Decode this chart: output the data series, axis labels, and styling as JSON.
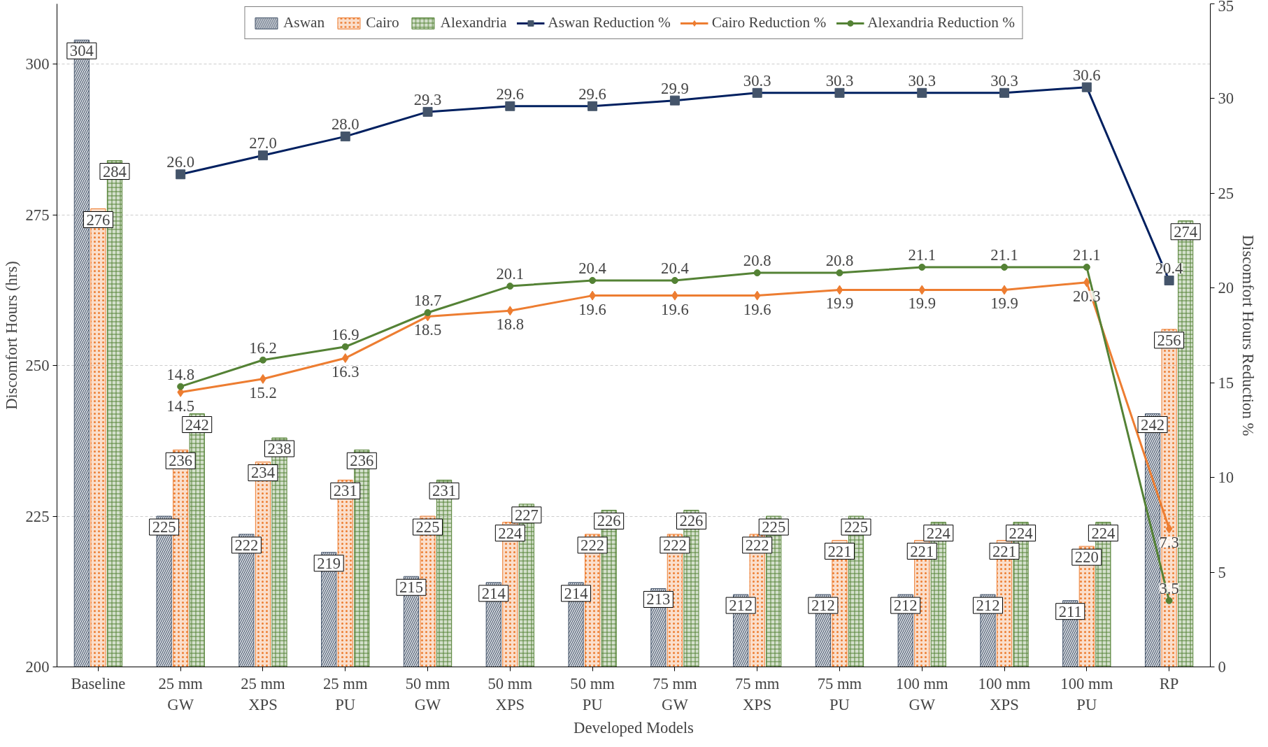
{
  "chart_data": {
    "type": "bar",
    "xlabel": "Developed Models",
    "ylabel": "Discomfort Hours (hrs)",
    "y2label": "Discomfort Hours Reduction %",
    "categories": [
      "Baseline",
      "25 mm\nGW",
      "25 mm\nXPS",
      "25 mm\nPU",
      "50 mm\nGW",
      "50 mm\nXPS",
      "50 mm\nPU",
      "75 mm\nGW",
      "75 mm\nXPS",
      "75 mm\nPU",
      "100 mm\nGW",
      "100 mm\nXPS",
      "100 mm\nPU",
      "RP"
    ],
    "series": [
      {
        "name": "Aswan",
        "color": "#44546a",
        "values": [
          304,
          225,
          222,
          219,
          215,
          214,
          214,
          213,
          212,
          212,
          212,
          212,
          211,
          242
        ]
      },
      {
        "name": "Cairo",
        "color": "#ed7d31",
        "values": [
          276,
          236,
          234,
          231,
          225,
          224,
          222,
          222,
          222,
          221,
          221,
          221,
          220,
          256
        ]
      },
      {
        "name": "Alexandria",
        "color": "#548235",
        "values": [
          284,
          242,
          238,
          236,
          231,
          227,
          226,
          226,
          225,
          225,
          224,
          224,
          224,
          274
        ]
      },
      {
        "name": "Aswan Reduction %",
        "type": "line",
        "axis": "y2",
        "marker": "square",
        "color": "#002060",
        "values": [
          null,
          26.0,
          27.0,
          28.0,
          29.3,
          29.6,
          29.6,
          29.9,
          30.3,
          30.3,
          30.3,
          30.3,
          30.6,
          20.4
        ],
        "value_labels": [
          null,
          "26.0",
          "27.0",
          "28.0",
          "29.3",
          "29.6",
          "29.6",
          "29.9",
          "30.3",
          "30.3",
          "30.3",
          "30.3",
          "30.6",
          "20.4"
        ]
      },
      {
        "name": "Cairo Reduction %",
        "type": "line",
        "axis": "y2",
        "marker": "diamond",
        "color": "#ed7d31",
        "values": [
          null,
          14.5,
          15.2,
          16.3,
          18.5,
          18.8,
          19.6,
          19.6,
          19.6,
          19.9,
          19.9,
          19.9,
          20.3,
          7.3
        ],
        "value_labels": [
          null,
          "14.5",
          "15.2",
          "16.3",
          "18.5",
          "18.8",
          "19.6",
          "19.6",
          "19.6",
          "19.9",
          "19.9",
          "19.9",
          "20.3",
          "7.3"
        ]
      },
      {
        "name": "Alexandria Reduction %",
        "type": "line",
        "axis": "y2",
        "marker": "circle",
        "color": "#548235",
        "values": [
          null,
          14.8,
          16.2,
          16.9,
          18.7,
          20.1,
          20.4,
          20.4,
          20.8,
          20.8,
          21.1,
          21.1,
          21.1,
          3.5
        ],
        "value_labels": [
          null,
          "14.8",
          "16.2",
          "16.9",
          "18.7",
          "20.1",
          "20.4",
          "20.4",
          "20.8",
          "20.8",
          "21.1",
          "21.1",
          "21.1",
          "3.5"
        ]
      }
    ],
    "ylim": [
      200,
      310
    ],
    "yticks": [
      200,
      225,
      250,
      275,
      300
    ],
    "y2lim": [
      0,
      35
    ],
    "y2ticks": [
      0,
      5,
      10,
      15,
      20,
      25,
      30,
      35
    ],
    "grid": "y",
    "legend": "top",
    "data_labels": true
  }
}
